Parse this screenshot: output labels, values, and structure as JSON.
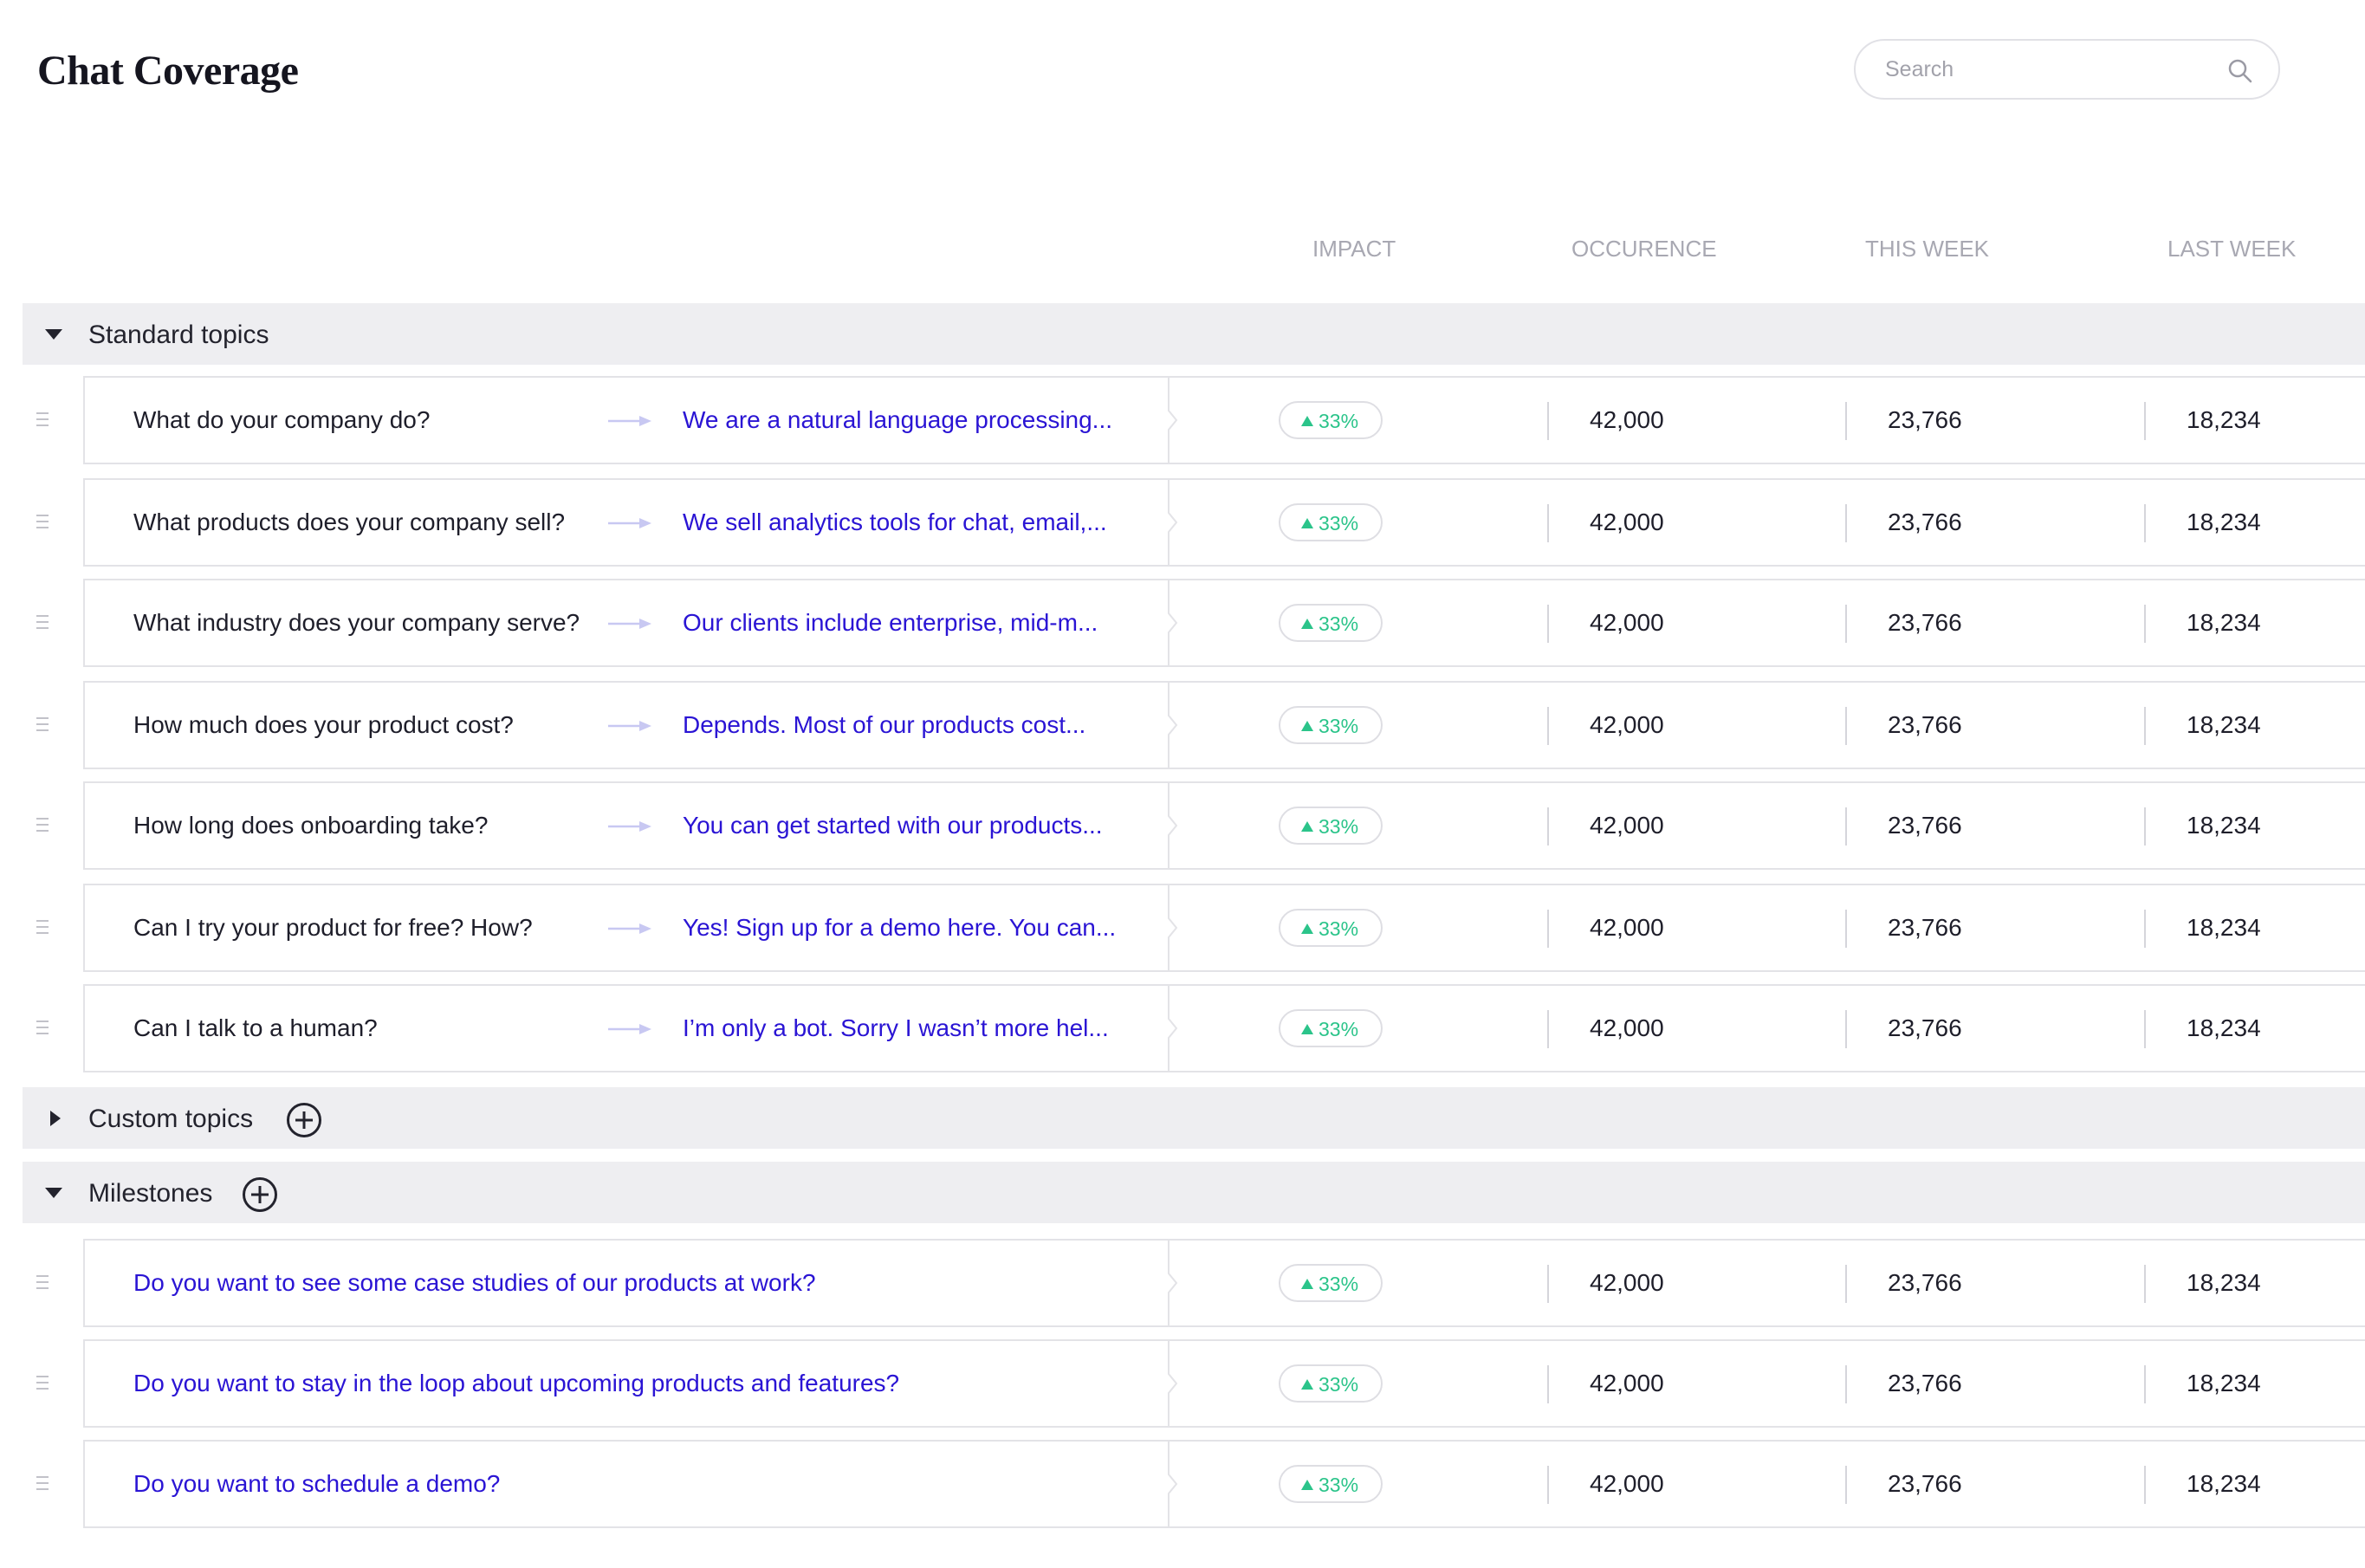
{
  "page": {
    "title": "Chat Coverage"
  },
  "search": {
    "placeholder": "Search",
    "icon": "search-icon"
  },
  "columns": {
    "impact": "IMPACT",
    "occurrence": "OCCURENCE",
    "this_week": "THIS WEEK",
    "last_week": "LAST WEEK"
  },
  "colors": {
    "accent_link": "#2a14d4",
    "positive": "#2bc48a",
    "section_bg": "#eeeef1"
  },
  "sections": {
    "standard": {
      "label": "Standard topics",
      "expanded": true,
      "rows": [
        {
          "question": "What do your company do?",
          "answer": "We are a natural language processing...",
          "impact": "33%",
          "occurrence": "42,000",
          "this_week": "23,766",
          "last_week": "18,234"
        },
        {
          "question": "What products does your company sell?",
          "answer": "We sell analytics tools for chat, email,...",
          "impact": "33%",
          "occurrence": "42,000",
          "this_week": "23,766",
          "last_week": "18,234"
        },
        {
          "question": "What industry does your company serve?",
          "answer": "Our clients include enterprise, mid-m...",
          "impact": "33%",
          "occurrence": "42,000",
          "this_week": "23,766",
          "last_week": "18,234"
        },
        {
          "question": "How much does your product cost?",
          "answer": "Depends. Most of our products cost...",
          "impact": "33%",
          "occurrence": "42,000",
          "this_week": "23,766",
          "last_week": "18,234"
        },
        {
          "question": "How long does onboarding take?",
          "answer": "You can get started with our products...",
          "impact": "33%",
          "occurrence": "42,000",
          "this_week": "23,766",
          "last_week": "18,234"
        },
        {
          "question": "Can I try your product for free? How?",
          "answer": "Yes! Sign up for a demo here. You can...",
          "impact": "33%",
          "occurrence": "42,000",
          "this_week": "23,766",
          "last_week": "18,234"
        },
        {
          "question": "Can I talk to a human?",
          "answer": "I’m only a bot. Sorry I wasn’t more hel...",
          "impact": "33%",
          "occurrence": "42,000",
          "this_week": "23,766",
          "last_week": "18,234"
        }
      ]
    },
    "custom": {
      "label": "Custom topics",
      "expanded": false
    },
    "milestones": {
      "label": "Milestones",
      "expanded": true,
      "rows": [
        {
          "question": "Do you want to see some case studies of our products at work?",
          "impact": "33%",
          "occurrence": "42,000",
          "this_week": "23,766",
          "last_week": "18,234"
        },
        {
          "question": "Do you want to stay in the loop about upcoming products and features?",
          "impact": "33%",
          "occurrence": "42,000",
          "this_week": "23,766",
          "last_week": "18,234"
        },
        {
          "question": "Do you want to schedule a demo?",
          "impact": "33%",
          "occurrence": "42,000",
          "this_week": "23,766",
          "last_week": "18,234"
        }
      ]
    }
  }
}
